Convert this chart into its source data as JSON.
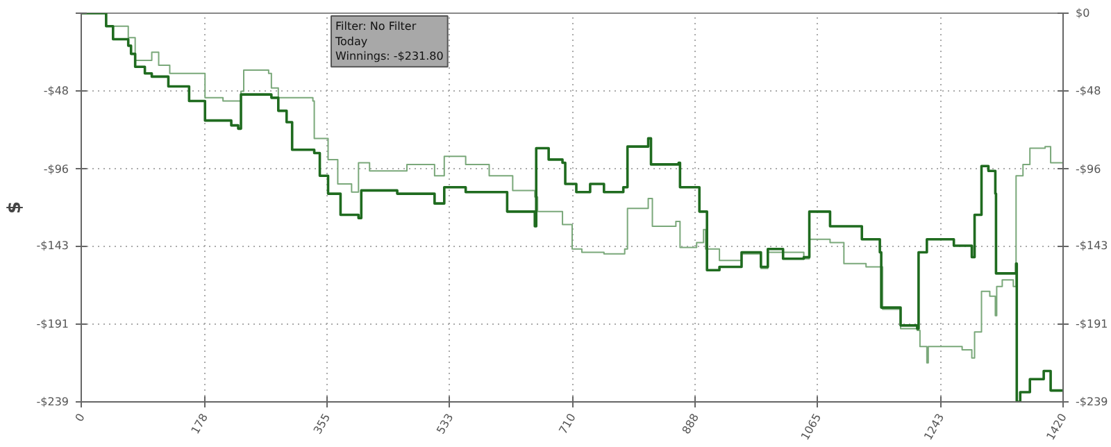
{
  "chart_data": {
    "type": "step",
    "ylabel": "$",
    "annotations": [
      "Filter: No Filter",
      "Today",
      "Winnings: -$231.80"
    ],
    "xlim": [
      0,
      1420
    ],
    "xticks": [
      0,
      178,
      355,
      533,
      710,
      888,
      1065,
      1243,
      1420
    ],
    "ylim": [
      -239,
      0
    ],
    "yticks": [
      {
        "value": 0,
        "label": null
      },
      {
        "value": -48,
        "label": "-$48"
      },
      {
        "value": -96,
        "label": "-$96"
      },
      {
        "value": -143,
        "label": "-$143"
      },
      {
        "value": -191,
        "label": "-$191"
      },
      {
        "value": -239,
        "label": "-$239"
      }
    ],
    "y2lim": [
      -239,
      0
    ],
    "y2ticks": [
      {
        "value": 0,
        "label": "$0"
      },
      {
        "value": -48,
        "label": "-$48"
      },
      {
        "value": -96,
        "label": "-$96"
      },
      {
        "value": -143,
        "label": "-$143"
      },
      {
        "value": -191,
        "label": "-$191"
      },
      {
        "value": -239,
        "label": "-$239"
      }
    ],
    "grid": true,
    "line_style": "solid",
    "series": [
      {
        "color": "#7aa87a",
        "x": [
          0,
          36,
          68,
          76,
          78,
          92,
          102,
          112,
          128,
          177,
          179,
          205,
          231,
          235,
          271,
          275,
          285,
          335,
          337,
          357,
          371,
          391,
          401,
          417,
          471,
          511,
          525,
          556,
          590,
          624,
          656,
          660,
          696,
          710,
          724,
          756,
          786,
          790,
          820,
          826,
          860,
          866,
          890,
          900,
          903,
          923,
          955,
          983,
          993,
          1045,
          1053,
          1083,
          1103,
          1135,
          1155,
          1159,
          1185,
          1209,
          1213,
          1223,
          1225,
          1274,
          1288,
          1292,
          1302,
          1314,
          1322,
          1324,
          1332,
          1348,
          1352,
          1362,
          1372,
          1394,
          1402,
          1420
        ],
        "values": [
          0,
          -8,
          -15,
          -15,
          -29,
          -29,
          -24,
          -32,
          -37,
          -37,
          -52,
          -54,
          -48,
          -35,
          -37,
          -46,
          -52,
          -54,
          -77,
          -90,
          -105,
          -110,
          -92,
          -97,
          -93,
          -100,
          -88,
          -93,
          -100,
          -109,
          -113,
          -122,
          -130,
          -145,
          -147,
          -148,
          -145,
          -120,
          -114,
          -131,
          -128,
          -144,
          -141,
          -133,
          -145,
          -152,
          -148,
          -157,
          -147,
          -151,
          -139,
          -141,
          -154,
          -156,
          -156,
          -182,
          -194,
          -195,
          -205,
          -215,
          -205,
          -207,
          -212,
          -196,
          -171,
          -174,
          -186,
          -168,
          -164,
          -168,
          -100,
          -93,
          -83,
          -82,
          -92,
          -92
        ]
      },
      {
        "color": "#1f6b1f",
        "x": [
          0,
          36,
          46,
          68,
          72,
          78,
          92,
          102,
          126,
          156,
          177,
          179,
          217,
          227,
          231,
          275,
          285,
          297,
          305,
          337,
          345,
          357,
          375,
          401,
          405,
          425,
          457,
          511,
          525,
          556,
          616,
          656,
          658,
          676,
          696,
          700,
          716,
          736,
          756,
          784,
          790,
          820,
          824,
          864,
          866,
          890,
          894,
          903,
          905,
          923,
          955,
          983,
          993,
          1009,
          1015,
          1045,
          1053,
          1083,
          1083,
          1129,
          1155,
          1157,
          1185,
          1209,
          1211,
          1223,
          1262,
          1288,
          1292,
          1302,
          1312,
          1322,
          1323,
          1352,
          1353,
          1358,
          1372,
          1392,
          1402,
          1420
        ],
        "values": [
          0,
          -8,
          -16,
          -20,
          -25,
          -33,
          -37,
          -39,
          -45,
          -54,
          -54,
          -66,
          -69,
          -71,
          -50,
          -52,
          -60,
          -67,
          -84,
          -86,
          -100,
          -111,
          -124,
          -126,
          -109,
          -109,
          -111,
          -117,
          -107,
          -110,
          -122,
          -131,
          -83,
          -90,
          -92,
          -105,
          -110,
          -105,
          -110,
          -107,
          -82,
          -77,
          -93,
          -92,
          -107,
          -107,
          -122,
          -122,
          -158,
          -156,
          -147,
          -156,
          -145,
          -145,
          -151,
          -150,
          -122,
          -124,
          -131,
          -139,
          -147,
          -181,
          -192,
          -194,
          -147,
          -139,
          -143,
          -150,
          -124,
          -94,
          -97,
          -111,
          -160,
          -154,
          -239,
          -233,
          -225,
          -220,
          -232,
          -231.8
        ]
      }
    ]
  }
}
